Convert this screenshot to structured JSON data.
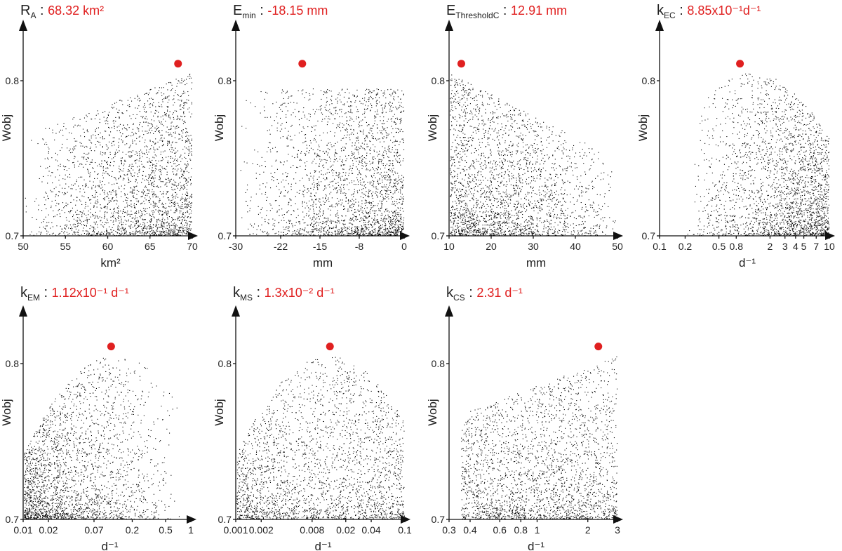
{
  "colors": {
    "points": "#000000",
    "optimum": "#e02020",
    "axis": "#111111"
  },
  "chart_data": [
    {
      "type": "scatter",
      "id": "RA",
      "symbol": "R",
      "subscript": "A",
      "value_text": "68.32 km²",
      "xlabel": "km²",
      "ylabel": "Wobj",
      "xscale": "linear",
      "xlim": [
        50,
        70
      ],
      "ylim": [
        0.7,
        0.8
      ],
      "xticks": [
        {
          "v": 50,
          "label": "50"
        },
        {
          "v": 55,
          "label": "55"
        },
        {
          "v": 60,
          "label": "60"
        },
        {
          "v": 65,
          "label": "65"
        },
        {
          "v": 70,
          "label": "70"
        }
      ],
      "yticks": [
        {
          "v": 0.7,
          "label": "0.7"
        },
        {
          "v": 0.8,
          "label": "0.8"
        }
      ],
      "optimum": {
        "x": 68.32,
        "y": 0.811
      },
      "cloud": {
        "trend": "increasing",
        "density": "higher-at-high-x"
      }
    },
    {
      "type": "scatter",
      "id": "Emin",
      "symbol": "E",
      "subscript": "min",
      "value_text": "-18.15 mm",
      "xlabel": "mm",
      "ylabel": "Wobj",
      "xscale": "linear",
      "xlim": [
        -30,
        0
      ],
      "ylim": [
        0.7,
        0.8
      ],
      "xticks": [
        {
          "v": -30,
          "label": "-30"
        },
        {
          "v": -22,
          "label": "-22"
        },
        {
          "v": -15,
          "label": "-15"
        },
        {
          "v": -8,
          "label": "-8"
        },
        {
          "v": 0,
          "label": "0"
        }
      ],
      "yticks": [
        {
          "v": 0.7,
          "label": "0.7"
        },
        {
          "v": 0.8,
          "label": "0.8"
        }
      ],
      "optimum": {
        "x": -18.15,
        "y": 0.811
      },
      "cloud": {
        "trend": "flat",
        "density": "higher-at-high-x"
      }
    },
    {
      "type": "scatter",
      "id": "EThresholdC",
      "symbol": "E",
      "subscript": "ThresholdC",
      "value_text": "12.91 mm",
      "xlabel": "mm",
      "ylabel": "Wobj",
      "xscale": "linear",
      "xlim": [
        10,
        50
      ],
      "ylim": [
        0.7,
        0.8
      ],
      "xticks": [
        {
          "v": 10,
          "label": "10"
        },
        {
          "v": 20,
          "label": "20"
        },
        {
          "v": 30,
          "label": "30"
        },
        {
          "v": 40,
          "label": "40"
        },
        {
          "v": 50,
          "label": "50"
        }
      ],
      "yticks": [
        {
          "v": 0.7,
          "label": "0.7"
        },
        {
          "v": 0.8,
          "label": "0.8"
        }
      ],
      "optimum": {
        "x": 12.91,
        "y": 0.811
      },
      "cloud": {
        "trend": "decreasing",
        "density": "higher-at-low-x"
      }
    },
    {
      "type": "scatter",
      "id": "kEC",
      "symbol": "k",
      "subscript": "EC",
      "value_text": "8.85x10⁻¹d⁻¹",
      "xlabel": "d⁻¹",
      "ylabel": "Wobj",
      "xscale": "log",
      "xlim": [
        0.1,
        10
      ],
      "ylim": [
        0.7,
        0.8
      ],
      "xticks": [
        {
          "v": 0.1,
          "label": "0.1"
        },
        {
          "v": 0.2,
          "label": "0.2"
        },
        {
          "v": 0.5,
          "label": "0.5"
        },
        {
          "v": 0.8,
          "label": "0.8"
        },
        {
          "v": 2,
          "label": "2"
        },
        {
          "v": 3,
          "label": "3"
        },
        {
          "v": 4,
          "label": "4"
        },
        {
          "v": 5,
          "label": "5"
        },
        {
          "v": 7,
          "label": "7"
        },
        {
          "v": 10,
          "label": "10"
        }
      ],
      "yticks": [
        {
          "v": 0.7,
          "label": "0.7"
        },
        {
          "v": 0.8,
          "label": "0.8"
        }
      ],
      "optimum": {
        "x": 0.885,
        "y": 0.811
      },
      "cloud": {
        "trend": "hump",
        "xmin": 0.2,
        "density": "higher-at-high-x"
      }
    },
    {
      "type": "scatter",
      "id": "kEM",
      "symbol": "k",
      "subscript": "EM",
      "value_text": "1.12x10⁻¹ d⁻¹",
      "xlabel": "d⁻¹",
      "ylabel": "Wobj",
      "xscale": "log",
      "xlim": [
        0.01,
        1
      ],
      "ylim": [
        0.7,
        0.8
      ],
      "xticks": [
        {
          "v": 0.01,
          "label": "0.01"
        },
        {
          "v": 0.02,
          "label": "0.02"
        },
        {
          "v": 0.07,
          "label": "0.07"
        },
        {
          "v": 0.2,
          "label": "0.2"
        },
        {
          "v": 0.5,
          "label": "0.5"
        },
        {
          "v": 1,
          "label": "1"
        }
      ],
      "yticks": [
        {
          "v": 0.7,
          "label": "0.7"
        },
        {
          "v": 0.8,
          "label": "0.8"
        }
      ],
      "optimum": {
        "x": 0.112,
        "y": 0.811
      },
      "cloud": {
        "trend": "hump",
        "xmax": 0.75,
        "density": "higher-at-low-x"
      }
    },
    {
      "type": "scatter",
      "id": "kMS",
      "symbol": "k",
      "subscript": "MS",
      "value_text": "1.3x10⁻² d⁻¹",
      "xlabel": "d⁻¹",
      "ylabel": "Wobj",
      "xscale": "log",
      "xlim": [
        0.001,
        0.1
      ],
      "ylim": [
        0.7,
        0.8
      ],
      "xticks": [
        {
          "v": 0.001,
          "label": "0.001"
        },
        {
          "v": 0.002,
          "label": "0.002"
        },
        {
          "v": 0.008,
          "label": "0.008"
        },
        {
          "v": 0.02,
          "label": "0.02"
        },
        {
          "v": 0.04,
          "label": "0.04"
        },
        {
          "v": 0.1,
          "label": "0.1"
        }
      ],
      "yticks": [
        {
          "v": 0.7,
          "label": "0.7"
        },
        {
          "v": 0.8,
          "label": "0.8"
        }
      ],
      "optimum": {
        "x": 0.013,
        "y": 0.811
      },
      "cloud": {
        "trend": "hump",
        "density": "uniform"
      }
    },
    {
      "type": "scatter",
      "id": "kCS",
      "symbol": "k",
      "subscript": "CS",
      "value_text": "2.31 d⁻¹",
      "xlabel": "d⁻¹",
      "ylabel": "Wobj",
      "xscale": "log",
      "xlim": [
        0.3,
        3
      ],
      "ylim": [
        0.7,
        0.8
      ],
      "xticks": [
        {
          "v": 0.3,
          "label": "0.3"
        },
        {
          "v": 0.4,
          "label": "0.4"
        },
        {
          "v": 0.6,
          "label": "0.6"
        },
        {
          "v": 0.8,
          "label": "0.8"
        },
        {
          "v": 1,
          "label": "1"
        },
        {
          "v": 2,
          "label": "2"
        },
        {
          "v": 3,
          "label": "3"
        }
      ],
      "yticks": [
        {
          "v": 0.7,
          "label": "0.7"
        },
        {
          "v": 0.8,
          "label": "0.8"
        }
      ],
      "optimum": {
        "x": 2.31,
        "y": 0.811
      },
      "cloud": {
        "trend": "increasing",
        "xmin": 0.35,
        "density": "uniform"
      }
    }
  ]
}
